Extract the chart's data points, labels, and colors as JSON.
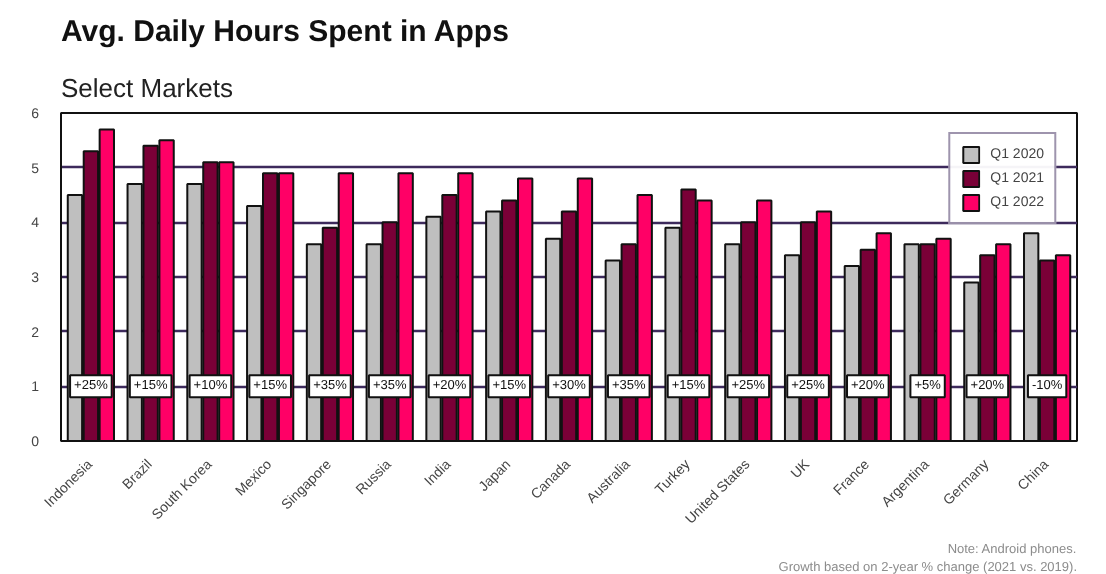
{
  "chart_data": {
    "type": "bar",
    "title": "Avg. Daily Hours Spent in Apps",
    "subtitle": "Select Markets",
    "categories": [
      "Indonesia",
      "Brazil",
      "South Korea",
      "Mexico",
      "Singapore",
      "Russia",
      "India",
      "Japan",
      "Canada",
      "Australia",
      "Turkey",
      "United States",
      "UK",
      "France",
      "Argentina",
      "Germany",
      "China"
    ],
    "series": [
      {
        "name": "Q1 2020",
        "color": "#bfbfbf",
        "values": [
          4.5,
          4.7,
          4.7,
          4.3,
          3.6,
          3.6,
          4.1,
          4.2,
          3.7,
          3.3,
          3.9,
          3.6,
          3.4,
          3.2,
          3.6,
          2.9,
          3.8
        ]
      },
      {
        "name": "Q1 2021",
        "color": "#7a0037",
        "values": [
          5.3,
          5.4,
          5.1,
          4.9,
          3.9,
          4.0,
          4.5,
          4.4,
          4.2,
          3.6,
          4.6,
          4.0,
          4.0,
          3.5,
          3.6,
          3.4,
          3.3
        ]
      },
      {
        "name": "Q1 2022",
        "color": "#ff0066",
        "values": [
          5.7,
          5.5,
          5.1,
          4.9,
          4.9,
          4.9,
          4.9,
          4.8,
          4.8,
          4.5,
          4.4,
          4.4,
          4.2,
          3.8,
          3.7,
          3.6,
          3.4
        ]
      }
    ],
    "ylim": [
      0,
      6
    ],
    "yticks": [
      0,
      1,
      2,
      3,
      4,
      5,
      6
    ],
    "grid": "y",
    "legend": "top right",
    "annotations": [
      {
        "text": "+25%",
        "x": "Indonesia",
        "y": 1
      },
      {
        "text": "+15%",
        "x": "Brazil",
        "y": 1
      },
      {
        "text": "+10%",
        "x": "South Korea",
        "y": 1
      },
      {
        "text": "+15%",
        "x": "Mexico",
        "y": 1
      },
      {
        "text": "+35%",
        "x": "Singapore",
        "y": 1
      },
      {
        "text": "+35%",
        "x": "Russia",
        "y": 1
      },
      {
        "text": "+20%",
        "x": "India",
        "y": 1
      },
      {
        "text": "+15%",
        "x": "Japan",
        "y": 1
      },
      {
        "text": "+30%",
        "x": "Canada",
        "y": 1
      },
      {
        "text": "+35%",
        "x": "Australia",
        "y": 1
      },
      {
        "text": "+15%",
        "x": "Turkey",
        "y": 1
      },
      {
        "text": "+25%",
        "x": "United States",
        "y": 1
      },
      {
        "text": "+25%",
        "x": "UK",
        "y": 1
      },
      {
        "text": "+20%",
        "x": "France",
        "y": 1
      },
      {
        "text": "+5%",
        "x": "Argentina",
        "y": 1
      },
      {
        "text": "+20%",
        "x": "Germany",
        "y": 1
      },
      {
        "text": "-10%",
        "x": "China",
        "y": 1
      },
      "Note: Android phones.",
      "Growth based on 2-year % change (2021 vs. 2019)."
    ]
  }
}
